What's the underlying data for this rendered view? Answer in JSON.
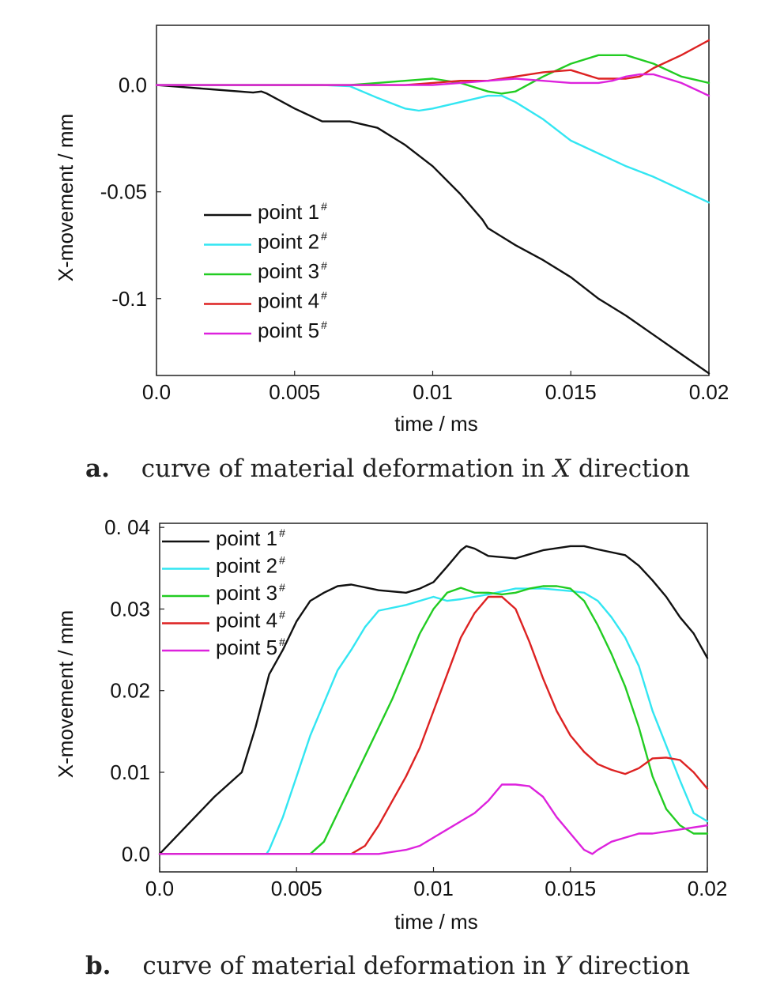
{
  "colors": {
    "point1": "#111111",
    "point2": "#33e6f2",
    "point3": "#22cc22",
    "point4": "#dd2222",
    "point5": "#dd22dd"
  },
  "chart_data": [
    {
      "type": "line",
      "caption_letter": "a.",
      "caption_text": "curve of material deformation in ",
      "caption_var": "X",
      "caption_tail": " direction",
      "xlabel": "time / ms",
      "ylabel": "X-movement / mm",
      "xlim": [
        0,
        0.02
      ],
      "ylim": [
        -0.136,
        0.028
      ],
      "xticks": [
        {
          "value": 0,
          "label": "0.0"
        },
        {
          "value": 0.005,
          "label": "0.005"
        },
        {
          "value": 0.01,
          "label": "0.01"
        },
        {
          "value": 0.015,
          "label": "0.015"
        },
        {
          "value": 0.02,
          "label": "0.02"
        }
      ],
      "yticks": [
        {
          "value": 0,
          "label": "0.0"
        },
        {
          "value": -0.05,
          "label": "-0.05"
        },
        {
          "value": -0.1,
          "label": "-0.1"
        }
      ],
      "legend_position": "lower-left",
      "grid": false,
      "series": [
        {
          "name": "point 1",
          "sup": "#",
          "color_key": "point1",
          "x": [
            0,
            0.002,
            0.0035,
            0.0038,
            0.004,
            0.005,
            0.006,
            0.0065,
            0.007,
            0.008,
            0.009,
            0.01,
            0.011,
            0.0118,
            0.012,
            0.013,
            0.014,
            0.015,
            0.016,
            0.017,
            0.018,
            0.019,
            0.02
          ],
          "y": [
            0,
            -0.002,
            -0.0035,
            -0.003,
            -0.004,
            -0.011,
            -0.017,
            -0.017,
            -0.017,
            -0.02,
            -0.028,
            -0.038,
            -0.051,
            -0.063,
            -0.067,
            -0.075,
            -0.082,
            -0.09,
            -0.1,
            -0.108,
            -0.117,
            -0.126,
            -0.135
          ]
        },
        {
          "name": "point 2",
          "sup": "#",
          "color_key": "point2",
          "x": [
            0,
            0.006,
            0.007,
            0.008,
            0.009,
            0.0095,
            0.01,
            0.011,
            0.012,
            0.0125,
            0.013,
            0.014,
            0.015,
            0.016,
            0.017,
            0.018,
            0.019,
            0.02
          ],
          "y": [
            0,
            0,
            -0.0005,
            -0.006,
            -0.011,
            -0.012,
            -0.011,
            -0.008,
            -0.005,
            -0.005,
            -0.008,
            -0.016,
            -0.026,
            -0.032,
            -0.038,
            -0.043,
            -0.049,
            -0.055
          ]
        },
        {
          "name": "point 3",
          "sup": "#",
          "color_key": "point3",
          "x": [
            0,
            0.007,
            0.008,
            0.009,
            0.01,
            0.011,
            0.012,
            0.0125,
            0.013,
            0.014,
            0.015,
            0.016,
            0.017,
            0.018,
            0.019,
            0.02
          ],
          "y": [
            0,
            0,
            0.001,
            0.002,
            0.003,
            0.001,
            -0.003,
            -0.004,
            -0.003,
            0.004,
            0.01,
            0.014,
            0.014,
            0.01,
            0.004,
            0.001
          ]
        },
        {
          "name": "point 4",
          "sup": "#",
          "color_key": "point4",
          "x": [
            0,
            0.008,
            0.009,
            0.01,
            0.011,
            0.012,
            0.013,
            0.014,
            0.015,
            0.016,
            0.017,
            0.0175,
            0.018,
            0.019,
            0.02
          ],
          "y": [
            0,
            0,
            0,
            0.001,
            0.002,
            0.002,
            0.004,
            0.006,
            0.007,
            0.003,
            0.003,
            0.004,
            0.008,
            0.014,
            0.021
          ]
        },
        {
          "name": "point 5",
          "sup": "#",
          "color_key": "point5",
          "x": [
            0,
            0.009,
            0.01,
            0.011,
            0.012,
            0.013,
            0.014,
            0.015,
            0.016,
            0.0165,
            0.017,
            0.0175,
            0.018,
            0.019,
            0.02
          ],
          "y": [
            0,
            0,
            0,
            0.001,
            0.002,
            0.003,
            0.002,
            0.001,
            0.001,
            0.002,
            0.004,
            0.005,
            0.005,
            0.001,
            -0.005
          ]
        }
      ]
    },
    {
      "type": "line",
      "caption_letter": "b.",
      "caption_text": "curve of material deformation in ",
      "caption_var": "Y",
      "caption_tail": " direction",
      "xlabel": "time / ms",
      "ylabel": "X-movement / mm",
      "xlim": [
        0,
        0.02
      ],
      "ylim": [
        -0.0022,
        0.0405
      ],
      "xticks": [
        {
          "value": 0,
          "label": "0.0"
        },
        {
          "value": 0.005,
          "label": "0.005"
        },
        {
          "value": 0.01,
          "label": "0.01"
        },
        {
          "value": 0.015,
          "label": "0.015"
        },
        {
          "value": 0.02,
          "label": "0.02"
        }
      ],
      "yticks": [
        {
          "value": 0,
          "label": "0.0"
        },
        {
          "value": 0.01,
          "label": "0.01"
        },
        {
          "value": 0.02,
          "label": "0.02"
        },
        {
          "value": 0.03,
          "label": "0.03"
        },
        {
          "value": 0.04,
          "label": "0. 04"
        }
      ],
      "legend_position": "top-left",
      "grid": false,
      "series": [
        {
          "name": "point 1",
          "sup": "#",
          "color_key": "point1",
          "x": [
            0,
            0.001,
            0.002,
            0.003,
            0.0035,
            0.004,
            0.0045,
            0.005,
            0.0055,
            0.006,
            0.0065,
            0.007,
            0.008,
            0.009,
            0.0095,
            0.01,
            0.0105,
            0.011,
            0.0112,
            0.0115,
            0.012,
            0.013,
            0.0135,
            0.014,
            0.015,
            0.0155,
            0.016,
            0.017,
            0.0175,
            0.018,
            0.0185,
            0.019,
            0.0195,
            0.02
          ],
          "y": [
            0,
            0.0035,
            0.007,
            0.01,
            0.0155,
            0.022,
            0.025,
            0.0285,
            0.031,
            0.032,
            0.0328,
            0.033,
            0.0323,
            0.032,
            0.0325,
            0.0333,
            0.0352,
            0.0372,
            0.0377,
            0.0374,
            0.0365,
            0.0362,
            0.0367,
            0.0372,
            0.0377,
            0.0377,
            0.0373,
            0.0366,
            0.0353,
            0.0335,
            0.0315,
            0.029,
            0.027,
            0.024
          ]
        },
        {
          "name": "point 2",
          "sup": "#",
          "color_key": "point2",
          "x": [
            0,
            0.0039,
            0.004,
            0.0045,
            0.005,
            0.0055,
            0.006,
            0.0065,
            0.007,
            0.0075,
            0.008,
            0.009,
            0.0095,
            0.01,
            0.0105,
            0.011,
            0.012,
            0.013,
            0.014,
            0.015,
            0.0155,
            0.016,
            0.0165,
            0.017,
            0.0175,
            0.018,
            0.019,
            0.0195,
            0.02
          ],
          "y": [
            0,
            0,
            0.0005,
            0.0045,
            0.0095,
            0.0145,
            0.0185,
            0.0225,
            0.025,
            0.0278,
            0.0298,
            0.0305,
            0.031,
            0.0315,
            0.031,
            0.0312,
            0.0318,
            0.0325,
            0.0325,
            0.0322,
            0.032,
            0.031,
            0.029,
            0.0265,
            0.023,
            0.0175,
            0.009,
            0.005,
            0.004
          ]
        },
        {
          "name": "point 3",
          "sup": "#",
          "color_key": "point3",
          "x": [
            0,
            0.0055,
            0.006,
            0.0065,
            0.007,
            0.0075,
            0.008,
            0.0085,
            0.009,
            0.0095,
            0.01,
            0.0105,
            0.011,
            0.0115,
            0.012,
            0.0125,
            0.013,
            0.0135,
            0.014,
            0.0145,
            0.015,
            0.0155,
            0.016,
            0.0165,
            0.017,
            0.0175,
            0.018,
            0.0185,
            0.019,
            0.0195,
            0.02
          ],
          "y": [
            0,
            0,
            0.0015,
            0.005,
            0.0085,
            0.012,
            0.0155,
            0.019,
            0.023,
            0.027,
            0.03,
            0.032,
            0.0326,
            0.032,
            0.032,
            0.0318,
            0.032,
            0.0325,
            0.0328,
            0.0328,
            0.0325,
            0.031,
            0.028,
            0.0245,
            0.0205,
            0.0155,
            0.0095,
            0.0055,
            0.0035,
            0.0025,
            0.0025
          ]
        },
        {
          "name": "point 4",
          "sup": "#",
          "color_key": "point4",
          "x": [
            0,
            0.007,
            0.0075,
            0.008,
            0.0085,
            0.009,
            0.0095,
            0.01,
            0.0105,
            0.011,
            0.0115,
            0.012,
            0.0125,
            0.013,
            0.0135,
            0.014,
            0.0145,
            0.015,
            0.0155,
            0.016,
            0.0165,
            0.017,
            0.0175,
            0.018,
            0.0185,
            0.019,
            0.0195,
            0.02
          ],
          "y": [
            0,
            0,
            0.001,
            0.0035,
            0.0065,
            0.0095,
            0.013,
            0.0175,
            0.022,
            0.0265,
            0.0295,
            0.0315,
            0.0315,
            0.03,
            0.026,
            0.0215,
            0.0175,
            0.0145,
            0.0125,
            0.011,
            0.0103,
            0.0098,
            0.0105,
            0.0117,
            0.0118,
            0.0115,
            0.01,
            0.008
          ]
        },
        {
          "name": "point 5",
          "sup": "#",
          "color_key": "point5",
          "x": [
            0,
            0.008,
            0.009,
            0.0095,
            0.01,
            0.0105,
            0.011,
            0.0115,
            0.012,
            0.0125,
            0.013,
            0.0135,
            0.014,
            0.0145,
            0.015,
            0.0155,
            0.0158,
            0.016,
            0.0165,
            0.017,
            0.0175,
            0.018,
            0.019,
            0.02
          ],
          "y": [
            0,
            0,
            0.0005,
            0.001,
            0.002,
            0.003,
            0.004,
            0.005,
            0.0065,
            0.0085,
            0.0085,
            0.0083,
            0.007,
            0.0045,
            0.0025,
            0.0005,
            0,
            0.0005,
            0.0015,
            0.002,
            0.0025,
            0.0025,
            0.003,
            0.0035
          ]
        }
      ]
    }
  ]
}
